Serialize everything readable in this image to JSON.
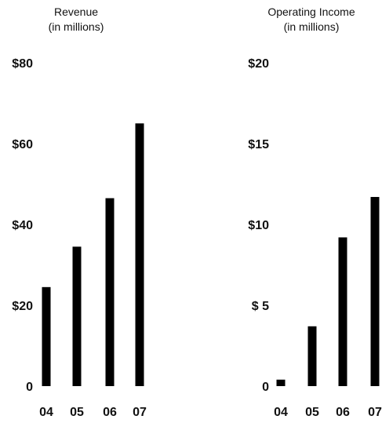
{
  "chart_data": [
    {
      "type": "bar",
      "title": "Revenue",
      "subtitle": "(in millions)",
      "categories": [
        "04",
        "05",
        "06",
        "07"
      ],
      "values": [
        24.5,
        34.5,
        46.5,
        65
      ],
      "ylim": [
        0,
        80
      ],
      "yticks": [
        0,
        20,
        40,
        60,
        80
      ],
      "ytick_labels": [
        "0",
        "$20",
        "$40",
        "$60",
        "$80"
      ],
      "grid": false,
      "bar_color": "#000000"
    },
    {
      "type": "bar",
      "title": "Operating Income",
      "subtitle": "(in millions)",
      "categories": [
        "04",
        "05",
        "06",
        "07"
      ],
      "values": [
        0.4,
        3.7,
        9.2,
        11.7
      ],
      "ylim": [
        0,
        20
      ],
      "yticks": [
        0,
        5,
        10,
        15,
        20
      ],
      "ytick_labels": [
        "0",
        "$ 5",
        "$10",
        "$15",
        "$20"
      ],
      "grid": false,
      "bar_color": "#000000"
    }
  ]
}
